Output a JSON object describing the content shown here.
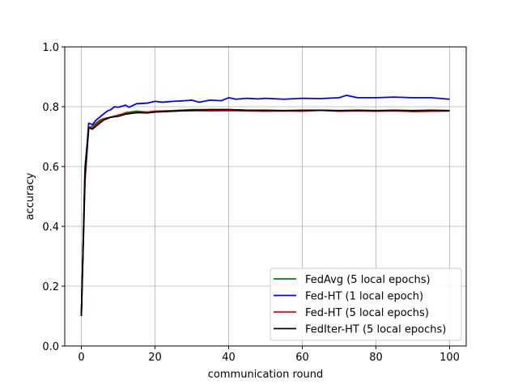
{
  "chart_data": {
    "type": "line",
    "title": "",
    "xlabel": "communication round",
    "ylabel": "accuracy",
    "xlim": [
      -4.5,
      104.5
    ],
    "ylim": [
      0.0,
      1.0
    ],
    "xticks": [
      0,
      20,
      40,
      60,
      80,
      100
    ],
    "yticks": [
      0.0,
      0.2,
      0.4,
      0.6,
      0.8,
      1.0
    ],
    "xtick_labels": [
      "0",
      "20",
      "40",
      "60",
      "80",
      "100"
    ],
    "ytick_labels": [
      "0.0",
      "0.2",
      "0.4",
      "0.6",
      "0.8",
      "1.0"
    ],
    "grid": true,
    "legend_position": "lower-right",
    "series": [
      {
        "name": "FedAvg (5 local epochs)",
        "color": "#008000",
        "points": [
          [
            0,
            0.1
          ],
          [
            1,
            0.6
          ],
          [
            2,
            0.73
          ],
          [
            3,
            0.735
          ],
          [
            4,
            0.745
          ],
          [
            5,
            0.755
          ],
          [
            6,
            0.76
          ],
          [
            8,
            0.765
          ],
          [
            10,
            0.77
          ],
          [
            12,
            0.78
          ],
          [
            15,
            0.785
          ],
          [
            18,
            0.782
          ],
          [
            20,
            0.785
          ],
          [
            25,
            0.787
          ],
          [
            30,
            0.79
          ],
          [
            35,
            0.79
          ],
          [
            40,
            0.79
          ],
          [
            45,
            0.788
          ],
          [
            50,
            0.787
          ],
          [
            55,
            0.786
          ],
          [
            60,
            0.787
          ],
          [
            65,
            0.788
          ],
          [
            70,
            0.786
          ],
          [
            75,
            0.787
          ],
          [
            80,
            0.786
          ],
          [
            85,
            0.787
          ],
          [
            90,
            0.784
          ],
          [
            95,
            0.785
          ],
          [
            100,
            0.786
          ]
        ]
      },
      {
        "name": "Fed-HT (1 local epoch)",
        "color": "#0000ff",
        "points": [
          [
            0,
            0.1
          ],
          [
            1,
            0.58
          ],
          [
            2,
            0.745
          ],
          [
            3,
            0.74
          ],
          [
            4,
            0.755
          ],
          [
            5,
            0.765
          ],
          [
            6,
            0.775
          ],
          [
            7,
            0.785
          ],
          [
            8,
            0.79
          ],
          [
            9,
            0.8
          ],
          [
            10,
            0.798
          ],
          [
            12,
            0.805
          ],
          [
            13,
            0.798
          ],
          [
            15,
            0.81
          ],
          [
            18,
            0.812
          ],
          [
            20,
            0.818
          ],
          [
            22,
            0.815
          ],
          [
            25,
            0.818
          ],
          [
            28,
            0.82
          ],
          [
            30,
            0.822
          ],
          [
            32,
            0.815
          ],
          [
            35,
            0.822
          ],
          [
            38,
            0.82
          ],
          [
            40,
            0.83
          ],
          [
            42,
            0.825
          ],
          [
            45,
            0.828
          ],
          [
            48,
            0.826
          ],
          [
            50,
            0.828
          ],
          [
            55,
            0.825
          ],
          [
            60,
            0.828
          ],
          [
            65,
            0.827
          ],
          [
            70,
            0.83
          ],
          [
            72,
            0.838
          ],
          [
            75,
            0.83
          ],
          [
            80,
            0.83
          ],
          [
            85,
            0.832
          ],
          [
            90,
            0.83
          ],
          [
            95,
            0.83
          ],
          [
            100,
            0.825
          ]
        ]
      },
      {
        "name": "Fed-HT (5 local epochs)",
        "color": "#ff0000",
        "points": [
          [
            0,
            0.1
          ],
          [
            1,
            0.55
          ],
          [
            2,
            0.73
          ],
          [
            3,
            0.728
          ],
          [
            4,
            0.74
          ],
          [
            5,
            0.75
          ],
          [
            6,
            0.758
          ],
          [
            8,
            0.765
          ],
          [
            10,
            0.772
          ],
          [
            12,
            0.778
          ],
          [
            15,
            0.78
          ],
          [
            18,
            0.782
          ],
          [
            20,
            0.785
          ],
          [
            25,
            0.786
          ],
          [
            30,
            0.787
          ],
          [
            35,
            0.786
          ],
          [
            40,
            0.787
          ],
          [
            45,
            0.786
          ],
          [
            50,
            0.785
          ],
          [
            55,
            0.786
          ],
          [
            60,
            0.785
          ],
          [
            65,
            0.788
          ],
          [
            70,
            0.785
          ],
          [
            75,
            0.786
          ],
          [
            80,
            0.785
          ],
          [
            85,
            0.786
          ],
          [
            90,
            0.784
          ],
          [
            95,
            0.785
          ],
          [
            100,
            0.786
          ]
        ]
      },
      {
        "name": "FedIter-HT (5 local epochs)",
        "color": "#000000",
        "points": [
          [
            0,
            0.1
          ],
          [
            1,
            0.57
          ],
          [
            2,
            0.73
          ],
          [
            3,
            0.725
          ],
          [
            4,
            0.735
          ],
          [
            5,
            0.745
          ],
          [
            6,
            0.755
          ],
          [
            8,
            0.765
          ],
          [
            10,
            0.768
          ],
          [
            12,
            0.775
          ],
          [
            15,
            0.78
          ],
          [
            18,
            0.779
          ],
          [
            20,
            0.782
          ],
          [
            25,
            0.785
          ],
          [
            30,
            0.788
          ],
          [
            35,
            0.79
          ],
          [
            40,
            0.79
          ],
          [
            45,
            0.788
          ],
          [
            50,
            0.788
          ],
          [
            55,
            0.787
          ],
          [
            60,
            0.788
          ],
          [
            65,
            0.788
          ],
          [
            70,
            0.787
          ],
          [
            75,
            0.788
          ],
          [
            80,
            0.787
          ],
          [
            85,
            0.788
          ],
          [
            90,
            0.787
          ],
          [
            95,
            0.788
          ],
          [
            100,
            0.787
          ]
        ]
      }
    ]
  }
}
